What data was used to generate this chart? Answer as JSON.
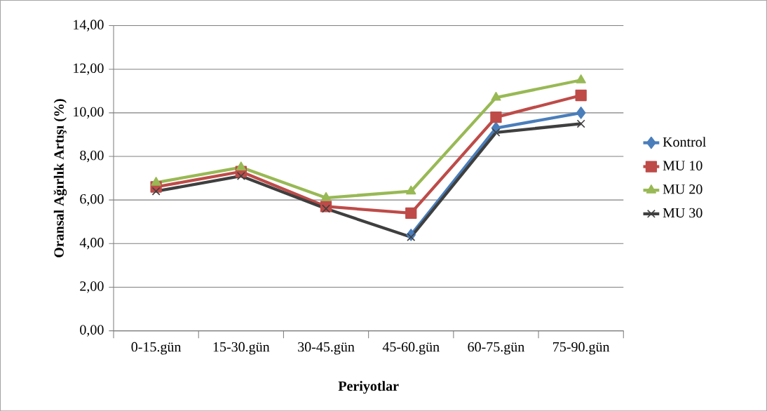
{
  "chart_data": {
    "type": "line",
    "xlabel": "Periyotlar",
    "ylabel": "Oransal Ağırlık Artışı (%)",
    "categories": [
      "0-15.gün",
      "15-30.gün",
      "30-45.gün",
      "45-60.gün",
      "60-75.gün",
      "75-90.gün"
    ],
    "ylim": [
      0,
      14
    ],
    "yticks": [
      {
        "value": 0,
        "label": "0,00"
      },
      {
        "value": 2,
        "label": "2,00"
      },
      {
        "value": 4,
        "label": "4,00"
      },
      {
        "value": 6,
        "label": "6,00"
      },
      {
        "value": 8,
        "label": "8,00"
      },
      {
        "value": 10,
        "label": "10,00"
      },
      {
        "value": 12,
        "label": "12,00"
      },
      {
        "value": 14,
        "label": "14,00"
      }
    ],
    "grid": "y",
    "legend": "right",
    "line_style": "solid",
    "series": [
      {
        "name": "Kontrol",
        "color": "#4a7ebb",
        "marker": "diamond",
        "values": [
          null,
          null,
          null,
          4.4,
          9.3,
          10.0
        ]
      },
      {
        "name": "MU 10",
        "color": "#be4b48",
        "marker": "square",
        "values": [
          6.6,
          7.3,
          5.7,
          5.4,
          9.8,
          10.8
        ]
      },
      {
        "name": "MU 20",
        "color": "#98b954",
        "marker": "triangle",
        "values": [
          6.8,
          7.5,
          6.1,
          6.4,
          10.7,
          11.5
        ]
      },
      {
        "name": "MU 30",
        "color": "#3f3f3f",
        "marker": "cross",
        "values": [
          6.4,
          7.1,
          5.6,
          4.3,
          9.1,
          9.5
        ]
      }
    ]
  }
}
